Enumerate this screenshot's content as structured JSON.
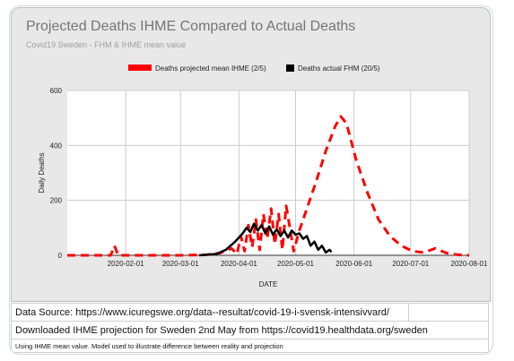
{
  "chart_data": {
    "type": "line",
    "title": "Projected Deaths IHME Compared to Actual Deaths",
    "subtitle": "Covid19 Sweden - FHM & IHME mean value",
    "xlabel": "DATE",
    "ylabel": "Daily Deaths",
    "x_ticks": [
      "2020-02-01",
      "2020-03-01",
      "2020-04-01",
      "2020-05-01",
      "2020-06-01",
      "2020-07-01",
      "2020-08-01"
    ],
    "y_ticks": [
      0,
      200,
      400,
      600
    ],
    "ylim": [
      0,
      600
    ],
    "xlim": [
      "2020-01-01",
      "2020-08-01"
    ],
    "grid": true,
    "legend_position": "top",
    "series": [
      {
        "name": "Deaths projected mean IHME (2/5)",
        "color": "#ff0000",
        "style": "dashed",
        "points": [
          [
            "2020-01-01",
            0
          ],
          [
            "2020-01-20",
            0
          ],
          [
            "2020-01-24",
            0
          ],
          [
            "2020-01-26",
            35
          ],
          [
            "2020-01-28",
            0
          ],
          [
            "2020-02-10",
            0
          ],
          [
            "2020-03-01",
            0
          ],
          [
            "2020-03-15",
            2
          ],
          [
            "2020-03-22",
            8
          ],
          [
            "2020-03-28",
            25
          ],
          [
            "2020-03-31",
            5
          ],
          [
            "2020-04-02",
            70
          ],
          [
            "2020-04-04",
            15
          ],
          [
            "2020-04-06",
            110
          ],
          [
            "2020-04-08",
            30
          ],
          [
            "2020-04-10",
            130
          ],
          [
            "2020-04-12",
            20
          ],
          [
            "2020-04-14",
            150
          ],
          [
            "2020-04-16",
            60
          ],
          [
            "2020-04-18",
            170
          ],
          [
            "2020-04-20",
            40
          ],
          [
            "2020-04-22",
            150
          ],
          [
            "2020-04-24",
            20
          ],
          [
            "2020-04-26",
            180
          ],
          [
            "2020-04-28",
            100
          ],
          [
            "2020-04-30",
            15
          ],
          [
            "2020-05-03",
            90
          ],
          [
            "2020-05-07",
            170
          ],
          [
            "2020-05-12",
            270
          ],
          [
            "2020-05-17",
            380
          ],
          [
            "2020-05-22",
            470
          ],
          [
            "2020-05-25",
            505
          ],
          [
            "2020-05-28",
            480
          ],
          [
            "2020-06-02",
            350
          ],
          [
            "2020-06-08",
            230
          ],
          [
            "2020-06-14",
            130
          ],
          [
            "2020-06-20",
            70
          ],
          [
            "2020-06-26",
            35
          ],
          [
            "2020-07-02",
            15
          ],
          [
            "2020-07-08",
            10
          ],
          [
            "2020-07-14",
            25
          ],
          [
            "2020-07-20",
            8
          ],
          [
            "2020-07-26",
            2
          ],
          [
            "2020-08-01",
            0
          ]
        ]
      },
      {
        "name": "Deaths actual FHM (20/5)",
        "color": "#000000",
        "style": "solid",
        "points": [
          [
            "2020-03-11",
            0
          ],
          [
            "2020-03-20",
            5
          ],
          [
            "2020-03-25",
            20
          ],
          [
            "2020-03-30",
            50
          ],
          [
            "2020-04-03",
            80
          ],
          [
            "2020-04-05",
            100
          ],
          [
            "2020-04-07",
            85
          ],
          [
            "2020-04-09",
            115
          ],
          [
            "2020-04-11",
            90
          ],
          [
            "2020-04-13",
            110
          ],
          [
            "2020-04-15",
            80
          ],
          [
            "2020-04-17",
            105
          ],
          [
            "2020-04-19",
            75
          ],
          [
            "2020-04-21",
            95
          ],
          [
            "2020-04-23",
            70
          ],
          [
            "2020-04-25",
            90
          ],
          [
            "2020-04-27",
            65
          ],
          [
            "2020-04-29",
            90
          ],
          [
            "2020-05-01",
            75
          ],
          [
            "2020-05-03",
            80
          ],
          [
            "2020-05-05",
            60
          ],
          [
            "2020-05-07",
            70
          ],
          [
            "2020-05-09",
            35
          ],
          [
            "2020-05-11",
            50
          ],
          [
            "2020-05-13",
            20
          ],
          [
            "2020-05-15",
            35
          ],
          [
            "2020-05-17",
            10
          ],
          [
            "2020-05-19",
            20
          ],
          [
            "2020-05-20",
            12
          ]
        ]
      }
    ]
  },
  "source_table": {
    "rows": [
      "Data Source: https://www.icuregswe.org/data--resultat/covid-19-i-svensk-intensivvard/",
      "Downloaded IHME projection for Sweden 2nd May from https://covid19.healthdata.org/sweden",
      "Using IHME mean value. Model used to illustrate difference between reality and projection"
    ]
  }
}
